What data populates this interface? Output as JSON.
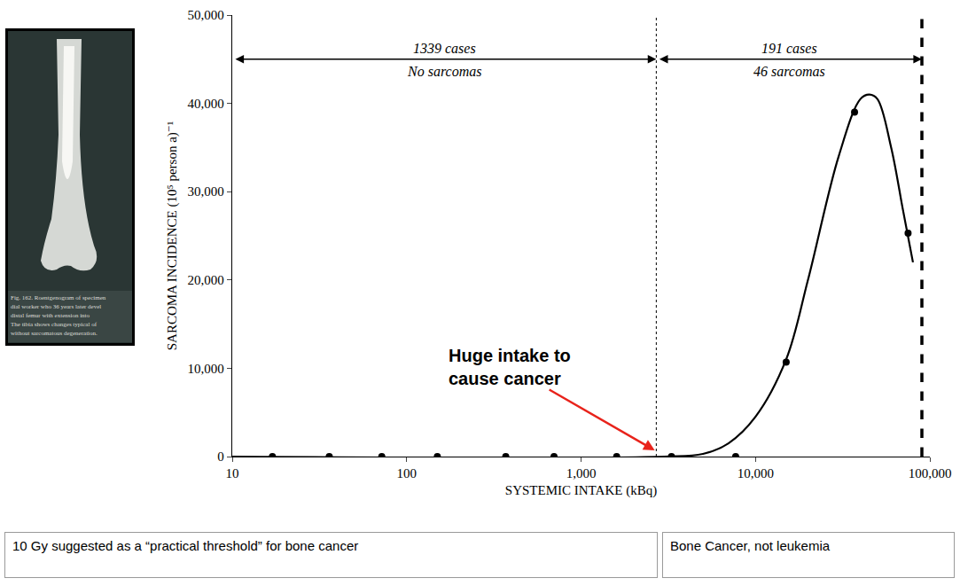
{
  "image": {
    "caption": [
      "Fig. 162. Roentgenogram of specimen",
      "dial worker who 36 years later devel",
      "distal femur with extension into",
      "The tibia shows changes typical of",
      "without sarcomatous degeneration."
    ]
  },
  "chart_data": {
    "type": "scatter",
    "x_label": "SYSTEMIC INTAKE (kBq)",
    "y_label": "SARCOMA INCIDENCE (10⁵ person a)⁻¹",
    "log": "x",
    "grid": false,
    "xlim": [
      10,
      100000
    ],
    "xticks": [
      10,
      100,
      {
        "value": 1000,
        "label": "1,000"
      },
      {
        "value": 10000,
        "label": "10,000"
      },
      {
        "value": 100000,
        "label": "100,000"
      }
    ],
    "ylim": [
      0,
      50000
    ],
    "yticks": [
      0,
      {
        "value": 10000,
        "label": "10,000"
      },
      {
        "value": 20000,
        "label": "20,000"
      },
      {
        "value": 30000,
        "label": "30,000"
      },
      {
        "value": 40000,
        "label": "40,000"
      },
      {
        "value": 50000,
        "label": "50,000"
      }
    ],
    "series": [
      {
        "type": "scatter",
        "marker": "circle",
        "color": "#000000",
        "x": [
          17,
          36,
          72,
          150,
          370,
          700,
          1600,
          3300,
          7700,
          15000,
          37000,
          75000
        ],
        "values": [
          0,
          0,
          0,
          0,
          0,
          0,
          0,
          0,
          0,
          10700,
          39000,
          25300
        ]
      },
      {
        "type": "line",
        "line_style": "solid",
        "color": "#000000",
        "x": [
          10,
          3000,
          5000,
          7000,
          10000,
          15000,
          20000,
          30000,
          40000,
          45000,
          50000,
          60000,
          70000,
          80000
        ],
        "values": [
          0,
          0,
          300,
          1500,
          4500,
          11000,
          20000,
          34000,
          40500,
          41000,
          40500,
          35000,
          28000,
          22000
        ]
      }
    ],
    "vlines": [
      {
        "x": 2700,
        "line_style": "dotted"
      },
      {
        "x": 90000,
        "line_style": "dashed"
      }
    ],
    "spans": [
      {
        "from": 10,
        "to": 2700,
        "y": 45000,
        "above": "1339 cases",
        "below": "No sarcomas"
      },
      {
        "from": 2700,
        "to": 90000,
        "y": 45000,
        "above": "191 cases",
        "below": "46 sarcomas"
      }
    ],
    "annotations": [
      {
        "text": "Huge intake to cause cancer",
        "x": 2700,
        "y": 600,
        "color": "#e8231b"
      }
    ]
  },
  "notes": [
    "10 Gy suggested as a “practical threshold” for bone cancer",
    "Bone Cancer, not leukemia"
  ]
}
